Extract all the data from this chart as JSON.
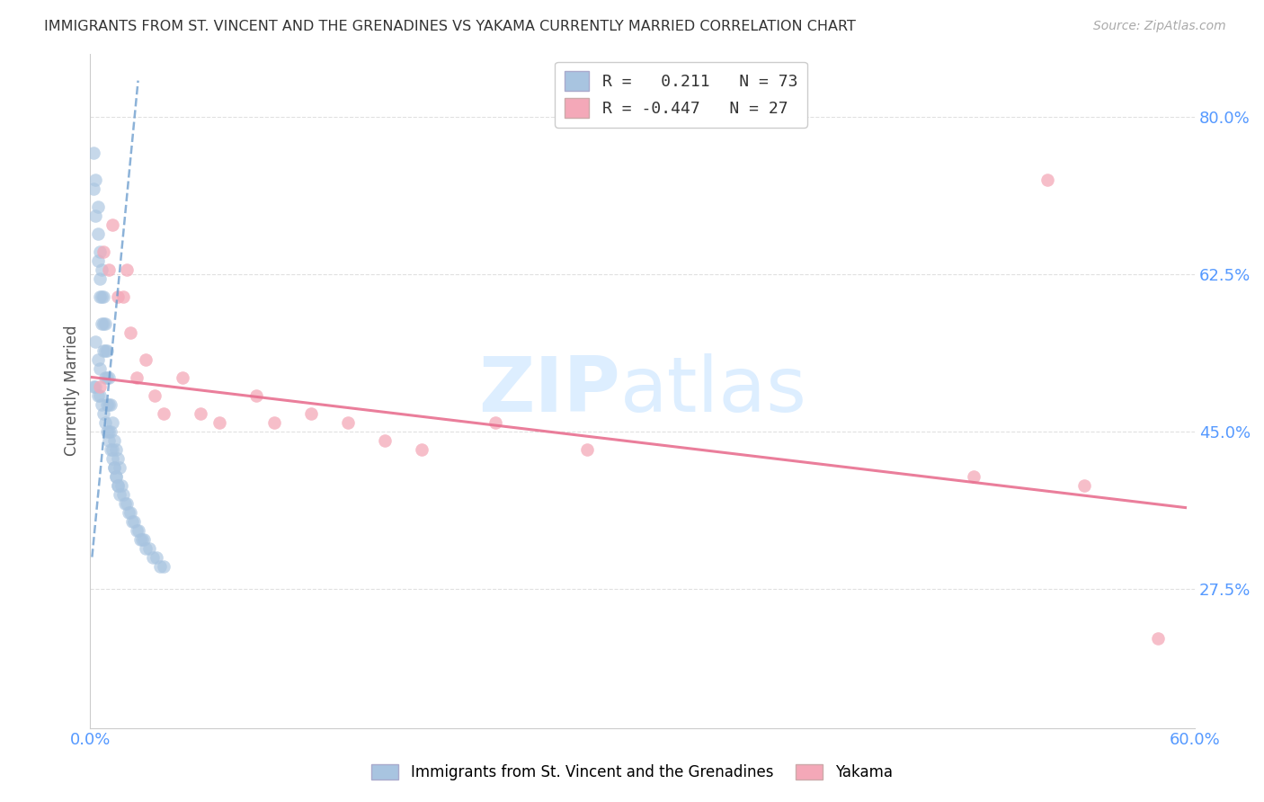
{
  "title": "IMMIGRANTS FROM ST. VINCENT AND THE GRENADINES VS YAKAMA CURRENTLY MARRIED CORRELATION CHART",
  "source": "Source: ZipAtlas.com",
  "ylabel": "Currently Married",
  "xlabel_blue": "Immigrants from St. Vincent and the Grenadines",
  "xlabel_pink": "Yakama",
  "xlim": [
    0.0,
    0.6
  ],
  "ylim": [
    0.12,
    0.87
  ],
  "yticks": [
    0.275,
    0.45,
    0.625,
    0.8
  ],
  "ytick_labels": [
    "27.5%",
    "45.0%",
    "62.5%",
    "80.0%"
  ],
  "xticks": [
    0.0,
    0.1,
    0.2,
    0.3,
    0.4,
    0.5,
    0.6
  ],
  "xtick_labels": [
    "0.0%",
    "",
    "",
    "",
    "",
    "",
    "60.0%"
  ],
  "blue_R": 0.211,
  "blue_N": 73,
  "pink_R": -0.447,
  "pink_N": 27,
  "blue_color": "#a8c4e0",
  "pink_color": "#f4a8b8",
  "blue_line_color": "#6699cc",
  "pink_line_color": "#e87090",
  "blue_scatter_x": [
    0.002,
    0.002,
    0.003,
    0.003,
    0.004,
    0.004,
    0.004,
    0.005,
    0.005,
    0.005,
    0.006,
    0.006,
    0.006,
    0.007,
    0.007,
    0.007,
    0.008,
    0.008,
    0.008,
    0.009,
    0.009,
    0.009,
    0.01,
    0.01,
    0.01,
    0.011,
    0.011,
    0.012,
    0.012,
    0.013,
    0.013,
    0.014,
    0.014,
    0.015,
    0.015,
    0.016,
    0.016,
    0.017,
    0.018,
    0.019,
    0.02,
    0.021,
    0.022,
    0.023,
    0.024,
    0.025,
    0.026,
    0.027,
    0.028,
    0.029,
    0.03,
    0.032,
    0.034,
    0.036,
    0.038,
    0.04,
    0.002,
    0.003,
    0.004,
    0.005,
    0.006,
    0.007,
    0.008,
    0.009,
    0.01,
    0.011,
    0.012,
    0.013,
    0.014,
    0.015,
    0.003,
    0.004,
    0.005
  ],
  "blue_scatter_y": [
    0.76,
    0.72,
    0.73,
    0.69,
    0.7,
    0.67,
    0.64,
    0.65,
    0.62,
    0.6,
    0.63,
    0.6,
    0.57,
    0.6,
    0.57,
    0.54,
    0.57,
    0.54,
    0.51,
    0.54,
    0.51,
    0.48,
    0.51,
    0.48,
    0.45,
    0.48,
    0.45,
    0.46,
    0.43,
    0.44,
    0.41,
    0.43,
    0.4,
    0.42,
    0.39,
    0.41,
    0.38,
    0.39,
    0.38,
    0.37,
    0.37,
    0.36,
    0.36,
    0.35,
    0.35,
    0.34,
    0.34,
    0.33,
    0.33,
    0.33,
    0.32,
    0.32,
    0.31,
    0.31,
    0.3,
    0.3,
    0.5,
    0.5,
    0.49,
    0.49,
    0.48,
    0.47,
    0.46,
    0.45,
    0.44,
    0.43,
    0.42,
    0.41,
    0.4,
    0.39,
    0.55,
    0.53,
    0.52
  ],
  "pink_scatter_x": [
    0.005,
    0.007,
    0.01,
    0.012,
    0.015,
    0.018,
    0.02,
    0.022,
    0.025,
    0.03,
    0.035,
    0.04,
    0.05,
    0.06,
    0.07,
    0.09,
    0.1,
    0.12,
    0.14,
    0.16,
    0.18,
    0.22,
    0.27,
    0.48,
    0.52,
    0.54,
    0.58
  ],
  "pink_scatter_y": [
    0.5,
    0.65,
    0.63,
    0.68,
    0.6,
    0.6,
    0.63,
    0.56,
    0.51,
    0.53,
    0.49,
    0.47,
    0.51,
    0.47,
    0.46,
    0.49,
    0.46,
    0.47,
    0.46,
    0.44,
    0.43,
    0.46,
    0.43,
    0.4,
    0.73,
    0.39,
    0.22
  ],
  "blue_line_x": [
    0.001,
    0.026
  ],
  "blue_line_y": [
    0.31,
    0.84
  ],
  "pink_line_x": [
    0.001,
    0.595
  ],
  "pink_line_y": [
    0.51,
    0.365
  ],
  "axis_color": "#5599ff",
  "tick_label_color": "#5599ff",
  "grid_color": "#cccccc",
  "background_color": "#ffffff",
  "watermark_zip": "ZIP",
  "watermark_atlas": "atlas",
  "watermark_color": "#ddeeff"
}
